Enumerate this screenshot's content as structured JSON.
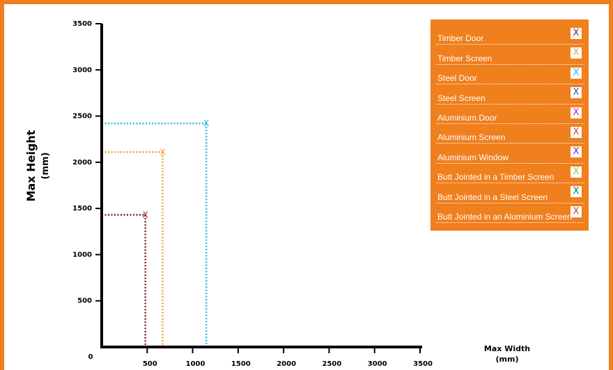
{
  "chart_data": {
    "type": "scatter",
    "xlabel_line1": "Max Width",
    "xlabel_line2": "(mm)",
    "ylabel_line1": "Max Height",
    "ylabel_line2": "(mm)",
    "x_ticks": [
      0,
      500,
      1000,
      1500,
      2000,
      2500,
      3000,
      3500
    ],
    "x_tick_labels": [
      "0",
      "500",
      "1000",
      "1500",
      "2000",
      "2500",
      "3000",
      "3500"
    ],
    "y_ticks": [
      500,
      1000,
      1500,
      2000,
      2500,
      3000,
      3500
    ],
    "y_tick_labels": [
      "500",
      "1000",
      "1500",
      "2000",
      "2500",
      "3000",
      "3500"
    ],
    "xlim": [
      0,
      3500
    ],
    "ylim": [
      0,
      3500
    ],
    "marker": "X",
    "series": [
      {
        "name": "Timber Door",
        "color": "#8b1a1a",
        "points": [
          {
            "x": 480,
            "y": 1430
          }
        ]
      },
      {
        "name": "Timber Screen",
        "color": "#f0a030",
        "points": [
          {
            "x": 670,
            "y": 2110
          }
        ]
      },
      {
        "name": "Steel Door",
        "color": "#29b6e6",
        "points": [
          {
            "x": 1150,
            "y": 2420
          }
        ]
      },
      {
        "name": "Steel Screen",
        "color": "#2e4fa0",
        "points": []
      },
      {
        "name": "Aluminium Door",
        "color": "#e0197d",
        "points": []
      },
      {
        "name": "Aluminium Screen",
        "color": "#e8303a",
        "points": []
      },
      {
        "name": "Aluminium Window",
        "color": "#7b2d8e",
        "points": []
      },
      {
        "name": "Butt Jointed in a Timber Screen",
        "color": "#8cc63f",
        "points": []
      },
      {
        "name": "Butt Jointed in a Steel Screen",
        "color": "#00795a",
        "points": []
      },
      {
        "name": "Butt Jointed in an Aluminium Screen",
        "color": "#a0522d",
        "points": []
      }
    ]
  }
}
